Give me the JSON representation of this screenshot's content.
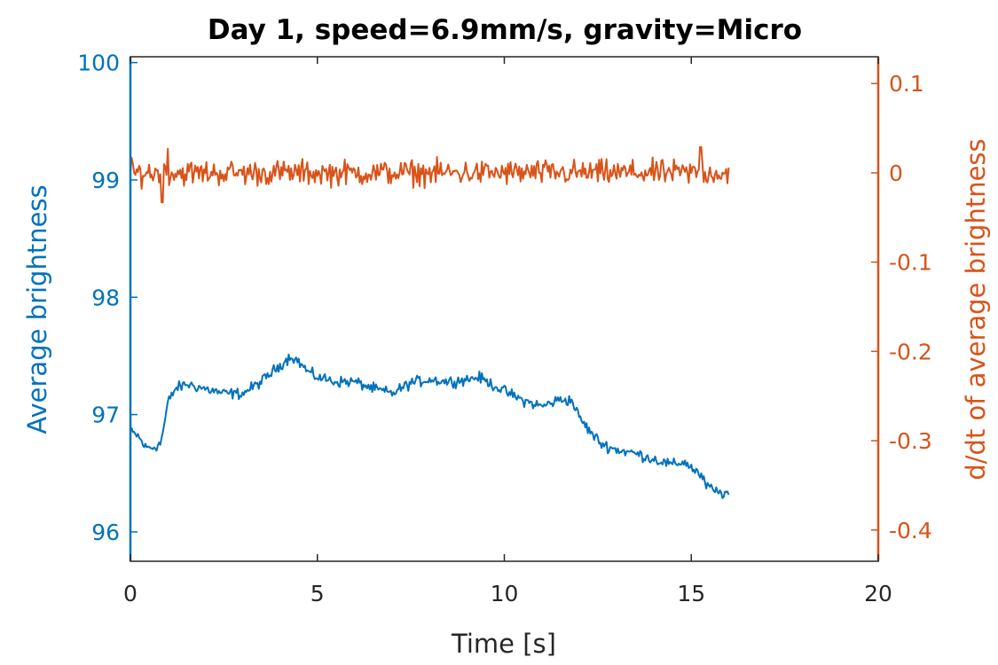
{
  "chart_data": {
    "type": "line",
    "title": "Day 1, speed=6.9mm/s, gravity=Micro",
    "xlabel": "Time [s]",
    "ylabel_left": "Average brightness",
    "ylabel_right": "d/dt of average brightness",
    "xlim": [
      0,
      20
    ],
    "ylim_left": [
      95.75,
      100.05
    ],
    "ylim_right": [
      -0.435,
      0.13
    ],
    "x_ticks": [
      "0",
      "5",
      "10",
      "15",
      "20"
    ],
    "y_left_ticks": [
      "96",
      "97",
      "98",
      "99",
      "100"
    ],
    "y_right_ticks": [
      "0.1",
      "0",
      "-0.1",
      "-0.2",
      "-0.3",
      "-0.4"
    ],
    "grid": false,
    "colors": {
      "left_axis": "#0072BD",
      "right_axis": "#D95319",
      "frame": "#262626"
    },
    "series": [
      {
        "axis": "left",
        "x": [
          0,
          0.2,
          0.4,
          0.6,
          0.8,
          0.9,
          1.0,
          1.2,
          1.5,
          2.0,
          2.5,
          3.0,
          3.5,
          4.0,
          4.3,
          4.5,
          4.8,
          5.0,
          5.5,
          6.0,
          6.5,
          7.0,
          7.5,
          8.0,
          8.5,
          9.0,
          9.3,
          9.6,
          10.0,
          10.5,
          11.0,
          11.5,
          11.8,
          12.0,
          12.3,
          12.6,
          13.0,
          13.5,
          14.0,
          14.5,
          14.8,
          15.0,
          15.2,
          15.4,
          15.6,
          15.8,
          16.0
        ],
        "values": [
          96.85,
          96.82,
          96.72,
          96.72,
          96.75,
          96.9,
          97.1,
          97.22,
          97.26,
          97.22,
          97.18,
          97.18,
          97.28,
          97.42,
          97.5,
          97.45,
          97.35,
          97.32,
          97.28,
          97.28,
          97.22,
          97.18,
          97.27,
          97.3,
          97.28,
          97.3,
          97.32,
          97.27,
          97.2,
          97.12,
          97.07,
          97.13,
          97.12,
          96.98,
          96.85,
          96.75,
          96.7,
          96.67,
          96.62,
          96.57,
          96.6,
          96.55,
          96.5,
          96.4,
          96.35,
          96.33,
          96.33
        ],
        "noise": 0.04
      },
      {
        "axis": "right",
        "x": [
          0,
          16
        ],
        "values": [
          0,
          0
        ],
        "noise": 0.012,
        "spikes": [
          {
            "x": 0.85,
            "value": -0.033
          },
          {
            "x": 1.0,
            "value": 0.027
          },
          {
            "x": 15.25,
            "value": 0.029
          }
        ]
      }
    ]
  }
}
